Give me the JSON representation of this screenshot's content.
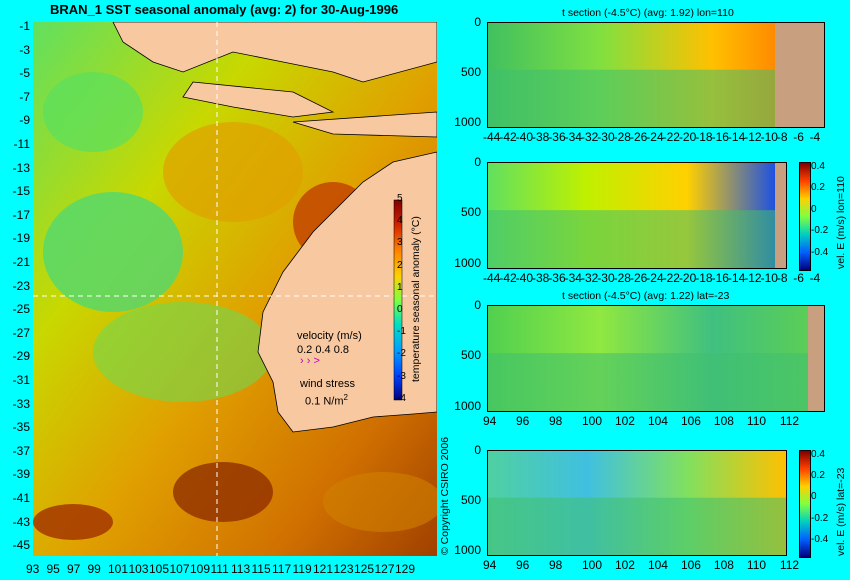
{
  "main_title": "BRAN_1 SST seasonal anomaly (avg: 2) for 30-Aug-1996",
  "map": {
    "lat_ticks": [
      "-1",
      "-3",
      "-5",
      "-7",
      "-9",
      "-11",
      "-13",
      "-15",
      "-17",
      "-19",
      "-21",
      "-23",
      "-25",
      "-27",
      "-29",
      "-31",
      "-33",
      "-35",
      "-37",
      "-39",
      "-41",
      "-43",
      "-45"
    ],
    "lon_ticks": [
      "93",
      "95",
      "97",
      "99",
      "101",
      "103",
      "105",
      "107",
      "109",
      "111",
      "113",
      "115",
      "117",
      "119",
      "121",
      "123",
      "125",
      "127",
      "129"
    ],
    "colorbar_ticks": [
      "5",
      "4",
      "3",
      "2",
      "1",
      "0",
      "-1",
      "-2",
      "-3",
      "-4"
    ],
    "colorbar_label": "temperature seasonal anomaly (°C)",
    "velocity_label": "velocity (m/s)",
    "velocity_scale": "0.2 0.4 0.8",
    "wind_label": "wind stress",
    "wind_scale": "0.1 N/m",
    "wind_scale_sup": "2",
    "copyright": "© Copyright CSIRO 2006",
    "colors": {
      "land": "#f8c8a0",
      "ocean_bg": "#00ffff"
    }
  },
  "panels": [
    {
      "title": "t section (-4.5°C) (avg: 1.92) lon=110",
      "y_ticks": [
        "0",
        "500",
        "1000"
      ],
      "x_ticks": [
        "-44",
        "-42",
        "-40",
        "-38",
        "-36",
        "-34",
        "-32",
        "-30",
        "-28",
        "-26",
        "-24",
        "-22",
        "-20",
        "-18",
        "-16",
        "-14",
        "-12",
        "-10",
        "-8",
        "-6",
        "-4"
      ]
    },
    {
      "title": "",
      "y_ticks": [
        "0",
        "500",
        "1000"
      ],
      "x_ticks": [
        "-44",
        "-42",
        "-40",
        "-38",
        "-36",
        "-34",
        "-32",
        "-30",
        "-28",
        "-26",
        "-24",
        "-22",
        "-20",
        "-18",
        "-16",
        "-14",
        "-12",
        "-10",
        "-8",
        "-6",
        "-4"
      ],
      "cb_ticks": [
        "0.4",
        "0.2",
        "0",
        "-0.2",
        "-0.4"
      ],
      "cb_label": "vel. E (m/s) lon=110"
    },
    {
      "title": "t section (-4.5°C) (avg: 1.22) lat=-23",
      "y_ticks": [
        "0",
        "500",
        "1000"
      ],
      "x_ticks": [
        "94",
        "96",
        "98",
        "100",
        "102",
        "104",
        "106",
        "108",
        "110",
        "112"
      ]
    },
    {
      "title": "",
      "y_ticks": [
        "0",
        "500",
        "1000"
      ],
      "x_ticks": [
        "94",
        "96",
        "98",
        "100",
        "102",
        "104",
        "106",
        "108",
        "110",
        "112"
      ],
      "cb_ticks": [
        "0.4",
        "0.2",
        "0",
        "-0.2",
        "-0.4"
      ],
      "cb_label": "vel. E (m/s) lat=-23"
    }
  ]
}
